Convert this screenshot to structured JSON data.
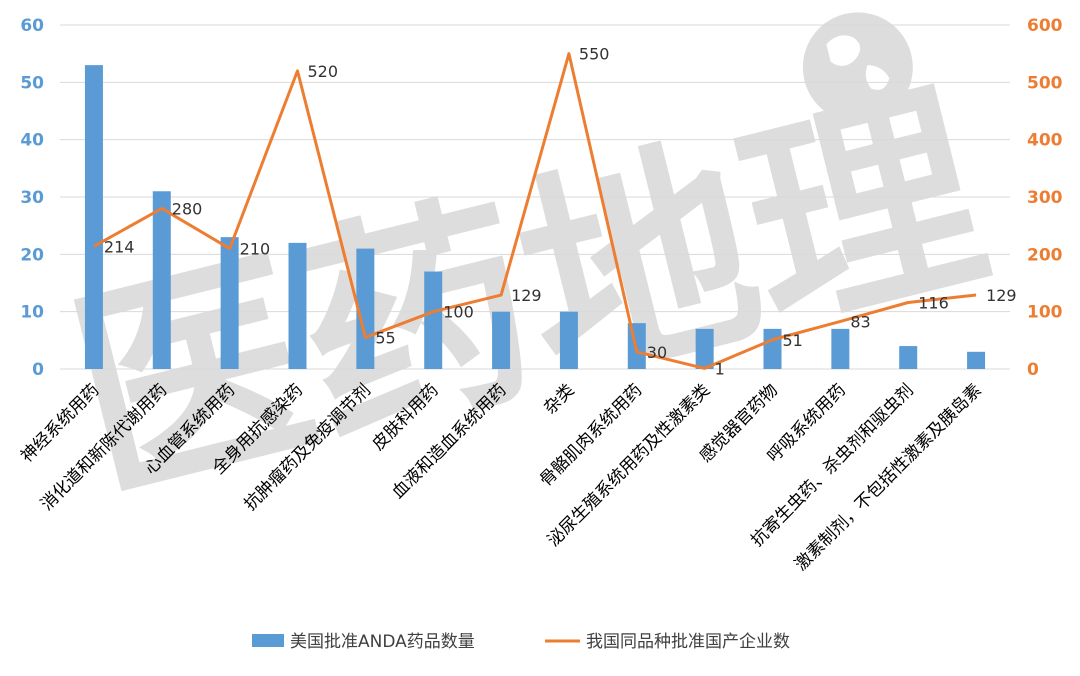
{
  "chart_data": {
    "type": "bar",
    "categories": [
      "神经系统用药",
      "消化道和新陈代谢用药",
      "心血管系统用药",
      "全身用抗感染药",
      "抗肿瘤药及免疫调节剂",
      "皮肤科用药",
      "血液和造血系统用药",
      "杂类",
      "骨骼肌肉系统用药",
      "泌尿生殖系统用药及性激素类",
      "感觉器官药物",
      "呼吸系统用药",
      "抗寄生虫药、杀虫剂和驱虫剂",
      "激素制剂，不包括性激素及胰岛素"
    ],
    "series": [
      {
        "name": "美国批准ANDA药品数量",
        "type": "bar",
        "axis": "left",
        "color": "#5B9BD5",
        "values": [
          53,
          31,
          23,
          22,
          21,
          17,
          10,
          10,
          8,
          7,
          7,
          7,
          4,
          3
        ]
      },
      {
        "name": "我国同品种批准国产企业数",
        "type": "line",
        "axis": "right",
        "color": "#ED7D31",
        "values": [
          214,
          280,
          210,
          520,
          55,
          100,
          129,
          550,
          30,
          1,
          51,
          83,
          116,
          129
        ],
        "labels": [
          "214",
          "280",
          "210",
          "520",
          "55",
          "100",
          "129",
          "550",
          "30",
          "1",
          "51",
          "83",
          "116",
          "129"
        ]
      }
    ],
    "y_left": {
      "range": [
        0,
        60
      ],
      "ticks": [
        "0",
        "10",
        "20",
        "30",
        "40",
        "50",
        "60"
      ],
      "color": "#5B9BD5"
    },
    "y_right": {
      "range": [
        0,
        600
      ],
      "ticks": [
        "0",
        "100",
        "200",
        "300",
        "400",
        "500",
        "600"
      ],
      "color": "#ED7D31"
    },
    "grid": true,
    "legend_position": "bottom"
  },
  "watermark": {
    "text": "医药地理",
    "icon": "globe-icon"
  }
}
